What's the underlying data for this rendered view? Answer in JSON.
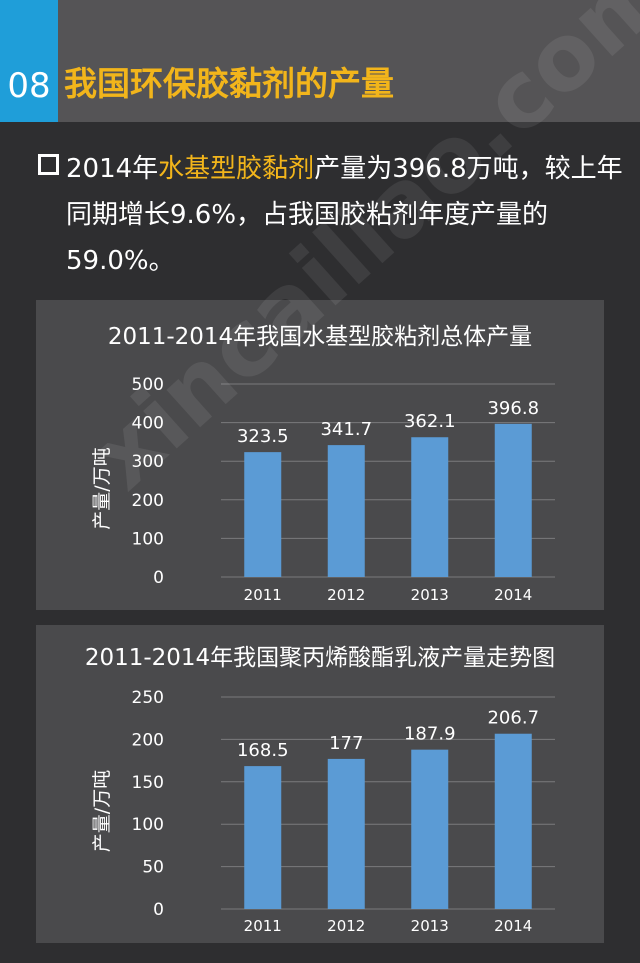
{
  "header": {
    "number": "08",
    "title": "我国环保胶黏剂的产量"
  },
  "bullet": {
    "text_before": "2014年",
    "highlight": "水基型胶黏剂",
    "text_after": "产量为396.8万吨，较上年同期增长9.6%，占我国胶粘剂年度产量的59.0%。"
  },
  "watermark": "xincailiao.com",
  "colors": {
    "accent_blue": "#1f9ed9",
    "title_gold": "#f2b51b",
    "bar": "#5b9bd5"
  },
  "chart_data": [
    {
      "type": "bar",
      "title": "2011-2014年我国水基型胶粘剂总体产量",
      "ylabel": "产量/万吨",
      "categories": [
        "2011",
        "2012",
        "2013",
        "2014"
      ],
      "values": [
        323.5,
        341.7,
        362.1,
        396.8
      ],
      "value_labels": [
        "323.5",
        "341.7",
        "362.1",
        "396.8"
      ],
      "ylim": [
        0,
        500
      ],
      "yticks": [
        0,
        100,
        200,
        300,
        400,
        500
      ],
      "grid": true
    },
    {
      "type": "bar",
      "title": "2011-2014年我国聚丙烯酸酯乳液产量走势图",
      "ylabel": "产量/万吨",
      "categories": [
        "2011",
        "2012",
        "2013",
        "2014"
      ],
      "values": [
        168.5,
        177,
        187.9,
        206.7
      ],
      "value_labels": [
        "168.5",
        "177",
        "187.9",
        "206.7"
      ],
      "ylim": [
        0,
        250
      ],
      "yticks": [
        0,
        50,
        100,
        150,
        200,
        250
      ],
      "grid": true
    }
  ]
}
